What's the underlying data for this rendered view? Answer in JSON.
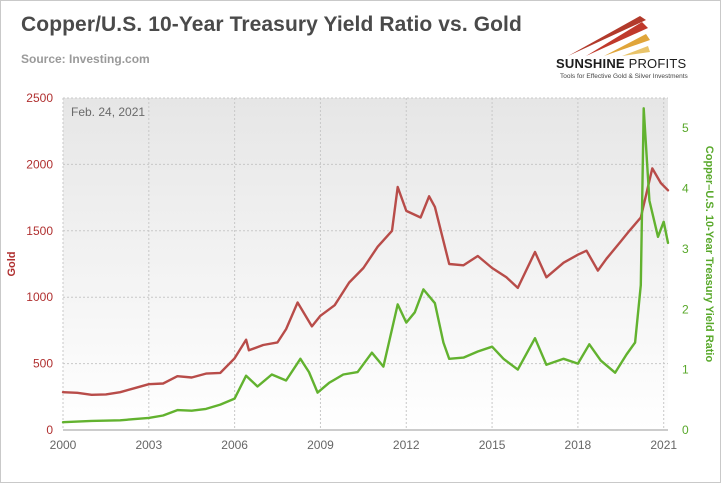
{
  "header": {
    "title": "Copper/U.S. 10-Year Treasury Yield Ratio vs. Gold",
    "source": "Source: Investing.com"
  },
  "logo": {
    "name_bold": "SUNSHINE",
    "name_light": "PROFITS",
    "tagline": "Tools for Effective Gold & Silver Investments"
  },
  "colors": {
    "gold": "#b84c49",
    "ratio": "#62b22f",
    "grid": "#c8c8c8",
    "plot_bg_top": "#e6e6e6",
    "plot_bg_bottom": "#ffffff"
  },
  "chart_data": {
    "type": "line",
    "title": "Copper/U.S. 10-Year Treasury Yield Ratio vs. Gold",
    "annotation": "Feb. 24, 2021",
    "xlim": [
      2000,
      2021.15
    ],
    "x_ticks": [
      2000,
      2003,
      2006,
      2009,
      2012,
      2015,
      2018,
      2021
    ],
    "x_tick_labels": [
      "2000",
      "2003",
      "2006",
      "2009",
      "2012",
      "2015",
      "2018",
      "2021"
    ],
    "y_left": {
      "label": "Gold",
      "ylim": [
        0,
        2500
      ],
      "ticks": [
        0,
        500,
        1000,
        1500,
        2000,
        2500
      ],
      "tick_labels": [
        "0",
        "500",
        "1000",
        "1500",
        "2000",
        "2500"
      ]
    },
    "y_right": {
      "label": "Copper–U.S. 10-Year Treasury Yield Ratio",
      "ylim": [
        0,
        5.5
      ],
      "ticks": [
        0,
        1,
        2,
        3,
        4,
        5
      ],
      "tick_labels": [
        "0",
        "1",
        "2",
        "3",
        "4",
        "5"
      ]
    },
    "grid": true,
    "series": [
      {
        "name": "Gold",
        "axis": "left",
        "points": [
          [
            2000.0,
            285
          ],
          [
            2000.5,
            280
          ],
          [
            2001.0,
            265
          ],
          [
            2001.5,
            268
          ],
          [
            2002.0,
            285
          ],
          [
            2002.5,
            315
          ],
          [
            2003.0,
            345
          ],
          [
            2003.5,
            350
          ],
          [
            2004.0,
            405
          ],
          [
            2004.5,
            395
          ],
          [
            2005.0,
            425
          ],
          [
            2005.5,
            430
          ],
          [
            2006.0,
            540
          ],
          [
            2006.4,
            680
          ],
          [
            2006.5,
            600
          ],
          [
            2007.0,
            640
          ],
          [
            2007.5,
            660
          ],
          [
            2007.8,
            760
          ],
          [
            2008.2,
            960
          ],
          [
            2008.7,
            780
          ],
          [
            2009.0,
            860
          ],
          [
            2009.5,
            940
          ],
          [
            2010.0,
            1110
          ],
          [
            2010.5,
            1220
          ],
          [
            2011.0,
            1380
          ],
          [
            2011.5,
            1500
          ],
          [
            2011.7,
            1830
          ],
          [
            2012.0,
            1650
          ],
          [
            2012.5,
            1600
          ],
          [
            2012.8,
            1760
          ],
          [
            2013.0,
            1680
          ],
          [
            2013.5,
            1250
          ],
          [
            2014.0,
            1240
          ],
          [
            2014.5,
            1310
          ],
          [
            2015.0,
            1220
          ],
          [
            2015.5,
            1150
          ],
          [
            2015.9,
            1070
          ],
          [
            2016.5,
            1340
          ],
          [
            2016.9,
            1150
          ],
          [
            2017.5,
            1260
          ],
          [
            2018.0,
            1320
          ],
          [
            2018.3,
            1350
          ],
          [
            2018.7,
            1200
          ],
          [
            2019.0,
            1290
          ],
          [
            2019.5,
            1420
          ],
          [
            2019.8,
            1500
          ],
          [
            2020.2,
            1600
          ],
          [
            2020.6,
            1970
          ],
          [
            2020.9,
            1860
          ],
          [
            2021.15,
            1805
          ]
        ]
      },
      {
        "name": "Copper–U.S. 10-Year Treasury Yield Ratio",
        "axis": "right",
        "points": [
          [
            2000.0,
            0.13
          ],
          [
            2001.0,
            0.15
          ],
          [
            2002.0,
            0.16
          ],
          [
            2002.5,
            0.18
          ],
          [
            2003.0,
            0.2
          ],
          [
            2003.5,
            0.24
          ],
          [
            2004.0,
            0.33
          ],
          [
            2004.5,
            0.32
          ],
          [
            2005.0,
            0.35
          ],
          [
            2005.5,
            0.42
          ],
          [
            2006.0,
            0.52
          ],
          [
            2006.4,
            0.9
          ],
          [
            2006.8,
            0.72
          ],
          [
            2007.3,
            0.92
          ],
          [
            2007.8,
            0.82
          ],
          [
            2008.3,
            1.18
          ],
          [
            2008.6,
            0.96
          ],
          [
            2008.9,
            0.62
          ],
          [
            2009.3,
            0.78
          ],
          [
            2009.8,
            0.92
          ],
          [
            2010.3,
            0.96
          ],
          [
            2010.8,
            1.28
          ],
          [
            2011.2,
            1.05
          ],
          [
            2011.7,
            2.08
          ],
          [
            2012.0,
            1.78
          ],
          [
            2012.3,
            1.95
          ],
          [
            2012.6,
            2.33
          ],
          [
            2013.0,
            2.1
          ],
          [
            2013.3,
            1.45
          ],
          [
            2013.5,
            1.18
          ],
          [
            2014.0,
            1.2
          ],
          [
            2014.5,
            1.3
          ],
          [
            2015.0,
            1.38
          ],
          [
            2015.4,
            1.18
          ],
          [
            2015.9,
            1.0
          ],
          [
            2016.5,
            1.52
          ],
          [
            2016.9,
            1.08
          ],
          [
            2017.5,
            1.18
          ],
          [
            2018.0,
            1.1
          ],
          [
            2018.4,
            1.42
          ],
          [
            2018.8,
            1.15
          ],
          [
            2019.3,
            0.95
          ],
          [
            2019.7,
            1.25
          ],
          [
            2020.0,
            1.45
          ],
          [
            2020.2,
            2.4
          ],
          [
            2020.3,
            5.33
          ],
          [
            2020.5,
            3.8
          ],
          [
            2020.8,
            3.2
          ],
          [
            2021.0,
            3.45
          ],
          [
            2021.15,
            3.1
          ]
        ]
      }
    ]
  }
}
